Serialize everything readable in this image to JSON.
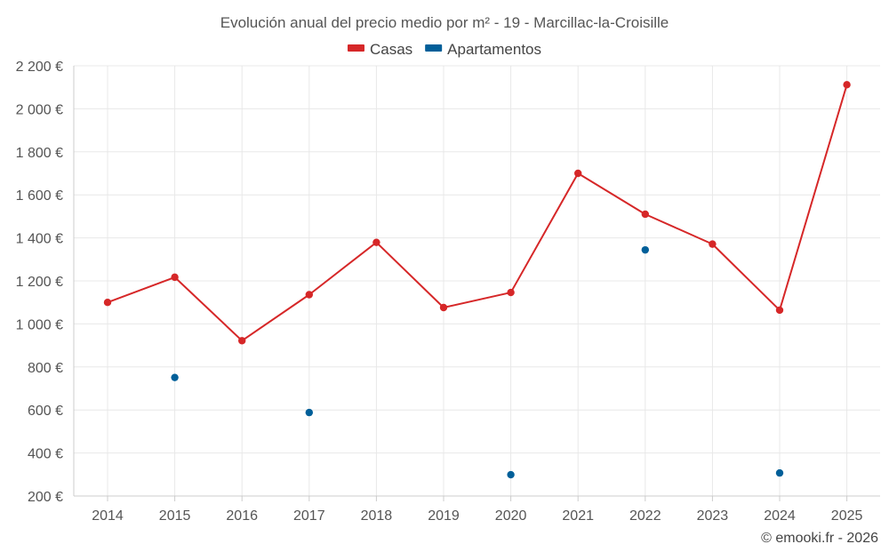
{
  "chart_data": {
    "type": "line",
    "title": "Evolución anual del precio medio por m² - 19 - Marcillac-la-Croisille",
    "categories": [
      "2014",
      "2015",
      "2016",
      "2017",
      "2018",
      "2019",
      "2020",
      "2021",
      "2022",
      "2023",
      "2024",
      "2025"
    ],
    "series": [
      {
        "name": "Casas",
        "color": "#d62728",
        "style": "line-with-markers",
        "values": [
          1100,
          1217,
          922,
          1136,
          1379,
          1076,
          1146,
          1700,
          1510,
          1371,
          1064,
          2112
        ]
      },
      {
        "name": "Apartamentos",
        "color": "#005f99",
        "style": "markers-only",
        "values": [
          null,
          751,
          null,
          588,
          null,
          null,
          299,
          null,
          1344,
          null,
          307,
          null
        ]
      }
    ],
    "ylim": [
      200,
      2200
    ],
    "yticks": [
      200,
      400,
      600,
      800,
      1000,
      1200,
      1400,
      1600,
      1800,
      2000,
      2200
    ],
    "ytick_labels": [
      "200 €",
      "400 €",
      "600 €",
      "800 €",
      "1 000 €",
      "1 200 €",
      "1 400 €",
      "1 600 €",
      "1 800 €",
      "2 000 €",
      "2 200 €"
    ],
    "xlabel": "",
    "ylabel": "",
    "grid": true,
    "legend_position": "top-center"
  },
  "credit": "© emooki.fr - 2026"
}
